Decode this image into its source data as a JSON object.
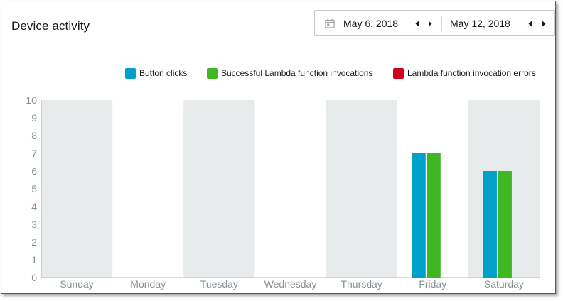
{
  "header": {
    "title": "Device activity"
  },
  "date_range": {
    "start": "May 6, 2018",
    "end": "May 12, 2018"
  },
  "legend": [
    {
      "label": "Button clicks",
      "color": "#00a1c9"
    },
    {
      "label": "Successful Lambda function invocations",
      "color": "#3fb722"
    },
    {
      "label": "Lambda function invocation errors",
      "color": "#d0021b"
    }
  ],
  "chart_data": {
    "type": "bar",
    "categories": [
      "Sunday",
      "Monday",
      "Tuesday",
      "Wednesday",
      "Thursday",
      "Friday",
      "Saturday"
    ],
    "series": [
      {
        "name": "Button clicks",
        "values": [
          0,
          0,
          0,
          0,
          0,
          7,
          6
        ],
        "color": "#00a1c9"
      },
      {
        "name": "Successful Lambda function invocations",
        "values": [
          0,
          0,
          0,
          0,
          0,
          7,
          6
        ],
        "color": "#3fb722"
      },
      {
        "name": "Lambda function invocation errors",
        "values": [
          0,
          0,
          0,
          0,
          0,
          0,
          0
        ],
        "color": "#d0021b"
      }
    ],
    "ylim": [
      0,
      10
    ],
    "yticks": [
      "0",
      "1",
      "2",
      "3",
      "4",
      "5",
      "6",
      "7",
      "8",
      "9",
      "10"
    ],
    "xlabel": "",
    "ylabel": "",
    "band_color": "#e8ebeb",
    "legend_position": "top-right"
  }
}
